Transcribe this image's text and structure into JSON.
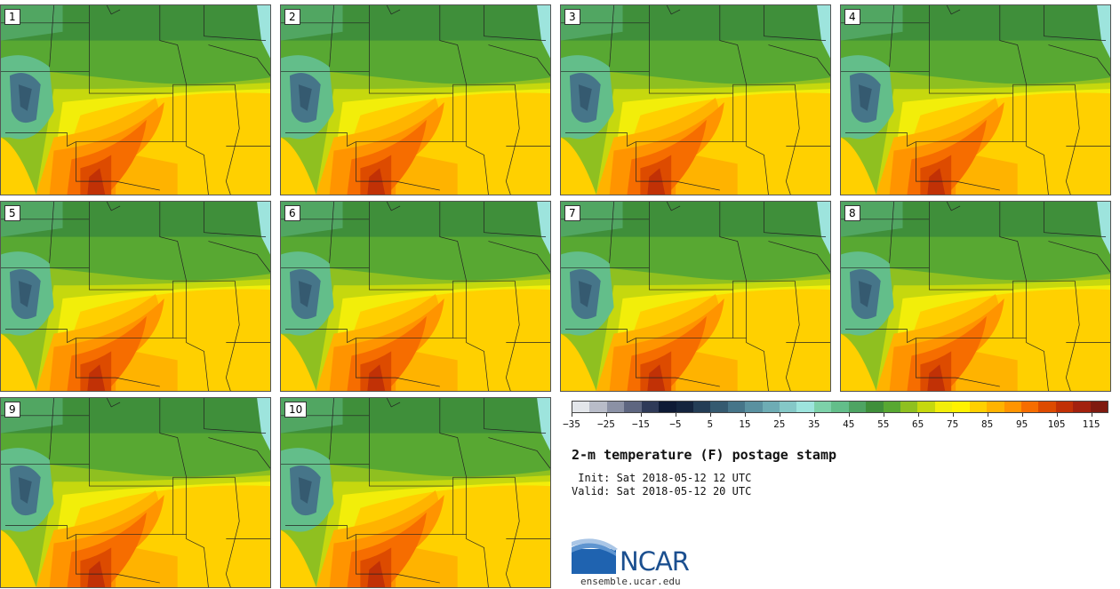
{
  "panels": [
    {
      "label": "1"
    },
    {
      "label": "2"
    },
    {
      "label": "3"
    },
    {
      "label": "4"
    },
    {
      "label": "5"
    },
    {
      "label": "6"
    },
    {
      "label": "7"
    },
    {
      "label": "8"
    },
    {
      "label": "9"
    },
    {
      "label": "10"
    }
  ],
  "colorbar": {
    "colors": [
      "#e3e6ea",
      "#b8bcc8",
      "#8b91a5",
      "#5e6680",
      "#2f3a58",
      "#0e1a35",
      "#14243e",
      "#243d56",
      "#355a70",
      "#467589",
      "#5a91a0",
      "#6eacb4",
      "#85c8c7",
      "#9de4dd",
      "#7dd1a9",
      "#63be8a",
      "#4ea463",
      "#3f8f3a",
      "#58a832",
      "#8fc020",
      "#c6d80e",
      "#f2ee0a",
      "#fff200",
      "#ffd000",
      "#ffb300",
      "#ff9400",
      "#f66d00",
      "#dd4b00",
      "#c13106",
      "#a2210e",
      "#7f1a10"
    ],
    "tick_labels": [
      "−35",
      "−25",
      "−15",
      "−5",
      "5",
      "15",
      "25",
      "35",
      "45",
      "55",
      "65",
      "75",
      "85",
      "95",
      "105",
      "115"
    ]
  },
  "title": "2-m temperature (F) postage stamp",
  "init": " Init: Sat 2018-05-12 12 UTC",
  "valid": "Valid: Sat 2018-05-12 20 UTC",
  "logo_text": "NCAR",
  "website": "ensemble.ucar.edu"
}
